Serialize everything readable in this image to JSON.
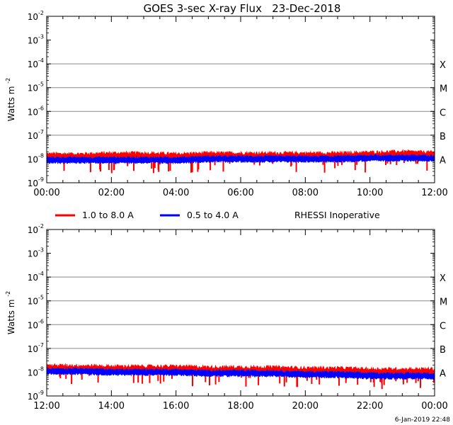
{
  "title": "GOES 3-sec X-ray Flux   23-Dec-2018",
  "footer_timestamp": "6-Jan-2019 22:48",
  "status_note": "RHESSI Inoperative",
  "colors": {
    "long_channel": "#ff0000",
    "short_channel": "#0000ff",
    "grid": "#888888"
  },
  "legend": [
    {
      "label": "1.0 to 8.0 A",
      "color": "#ff0000"
    },
    {
      "label": "0.5 to 4.0 A",
      "color": "#0000ff"
    }
  ],
  "chart_data": [
    {
      "type": "line",
      "panel": "top",
      "ylabel": "Watts m",
      "ylabel_superscript": "-2",
      "yscale": "log",
      "ylim": [
        1e-09,
        0.01
      ],
      "yticks": [
        {
          "base": "10",
          "exp": "-2"
        },
        {
          "base": "10",
          "exp": "-3"
        },
        {
          "base": "10",
          "exp": "-4"
        },
        {
          "base": "10",
          "exp": "-5"
        },
        {
          "base": "10",
          "exp": "-6"
        },
        {
          "base": "10",
          "exp": "-7"
        },
        {
          "base": "10",
          "exp": "-8"
        },
        {
          "base": "10",
          "exp": "-9"
        }
      ],
      "xticks": [
        "00:00",
        "02:00",
        "04:00",
        "06:00",
        "08:00",
        "10:00",
        "12:00"
      ],
      "xlim_hours": [
        0,
        12
      ],
      "flare_classes": [
        {
          "label": "X",
          "value": 0.0001
        },
        {
          "label": "M",
          "value": 1e-05
        },
        {
          "label": "C",
          "value": 1e-06
        },
        {
          "label": "B",
          "value": 1e-07
        },
        {
          "label": "A",
          "value": 1e-08
        }
      ],
      "grid": true,
      "series": [
        {
          "name": "1.0 to 8.0 A",
          "color": "#ff0000",
          "hours": [
            0,
            1,
            2,
            3,
            4,
            5,
            6,
            7,
            8,
            9,
            10,
            11,
            12
          ],
          "values": [
            1.2e-08,
            1.2e-08,
            1.3e-08,
            1.3e-08,
            1.2e-08,
            1.3e-08,
            1.3e-08,
            1.3e-08,
            1.3e-08,
            1.3e-08,
            1.4e-08,
            1.5e-08,
            1.4e-08
          ]
        },
        {
          "name": "0.5 to 4.0 A",
          "color": "#0000ff",
          "hours": [
            0,
            1,
            2,
            3,
            4,
            5,
            6,
            7,
            8,
            9,
            10,
            11,
            12
          ],
          "values": [
            9e-09,
            9e-09,
            9e-09,
            9e-09,
            9e-09,
            1e-08,
            1e-08,
            1e-08,
            1e-08,
            1e-08,
            1.1e-08,
            1.1e-08,
            1.1e-08
          ]
        }
      ]
    },
    {
      "type": "line",
      "panel": "bottom",
      "ylabel": "Watts m",
      "ylabel_superscript": "-2",
      "yscale": "log",
      "ylim": [
        1e-09,
        0.01
      ],
      "yticks": [
        {
          "base": "10",
          "exp": "-2"
        },
        {
          "base": "10",
          "exp": "-3"
        },
        {
          "base": "10",
          "exp": "-4"
        },
        {
          "base": "10",
          "exp": "-5"
        },
        {
          "base": "10",
          "exp": "-6"
        },
        {
          "base": "10",
          "exp": "-7"
        },
        {
          "base": "10",
          "exp": "-8"
        },
        {
          "base": "10",
          "exp": "-9"
        }
      ],
      "xticks": [
        "12:00",
        "14:00",
        "16:00",
        "18:00",
        "20:00",
        "22:00",
        "00:00"
      ],
      "xlim_hours": [
        12,
        24
      ],
      "flare_classes": [
        {
          "label": "X",
          "value": 0.0001
        },
        {
          "label": "M",
          "value": 1e-05
        },
        {
          "label": "C",
          "value": 1e-06
        },
        {
          "label": "B",
          "value": 1e-07
        },
        {
          "label": "A",
          "value": 1e-08
        }
      ],
      "grid": true,
      "series": [
        {
          "name": "1.0 to 8.0 A",
          "color": "#ff0000",
          "hours": [
            12,
            13,
            14,
            15,
            16,
            17,
            18,
            19,
            20,
            21,
            22,
            23,
            24
          ],
          "values": [
            1.4e-08,
            1.4e-08,
            1.3e-08,
            1.3e-08,
            1.3e-08,
            1.2e-08,
            1.2e-08,
            1.2e-08,
            1.1e-08,
            1.1e-08,
            1e-08,
            1e-08,
            1e-08
          ]
        },
        {
          "name": "0.5 to 4.0 A",
          "color": "#0000ff",
          "hours": [
            12,
            13,
            14,
            15,
            16,
            17,
            18,
            19,
            20,
            21,
            22,
            23,
            24
          ],
          "values": [
            1.1e-08,
            1.1e-08,
            1e-08,
            1e-08,
            1e-08,
            9e-09,
            9e-09,
            9e-09,
            8e-09,
            8e-09,
            7e-09,
            7e-09,
            7e-09
          ]
        }
      ]
    }
  ]
}
